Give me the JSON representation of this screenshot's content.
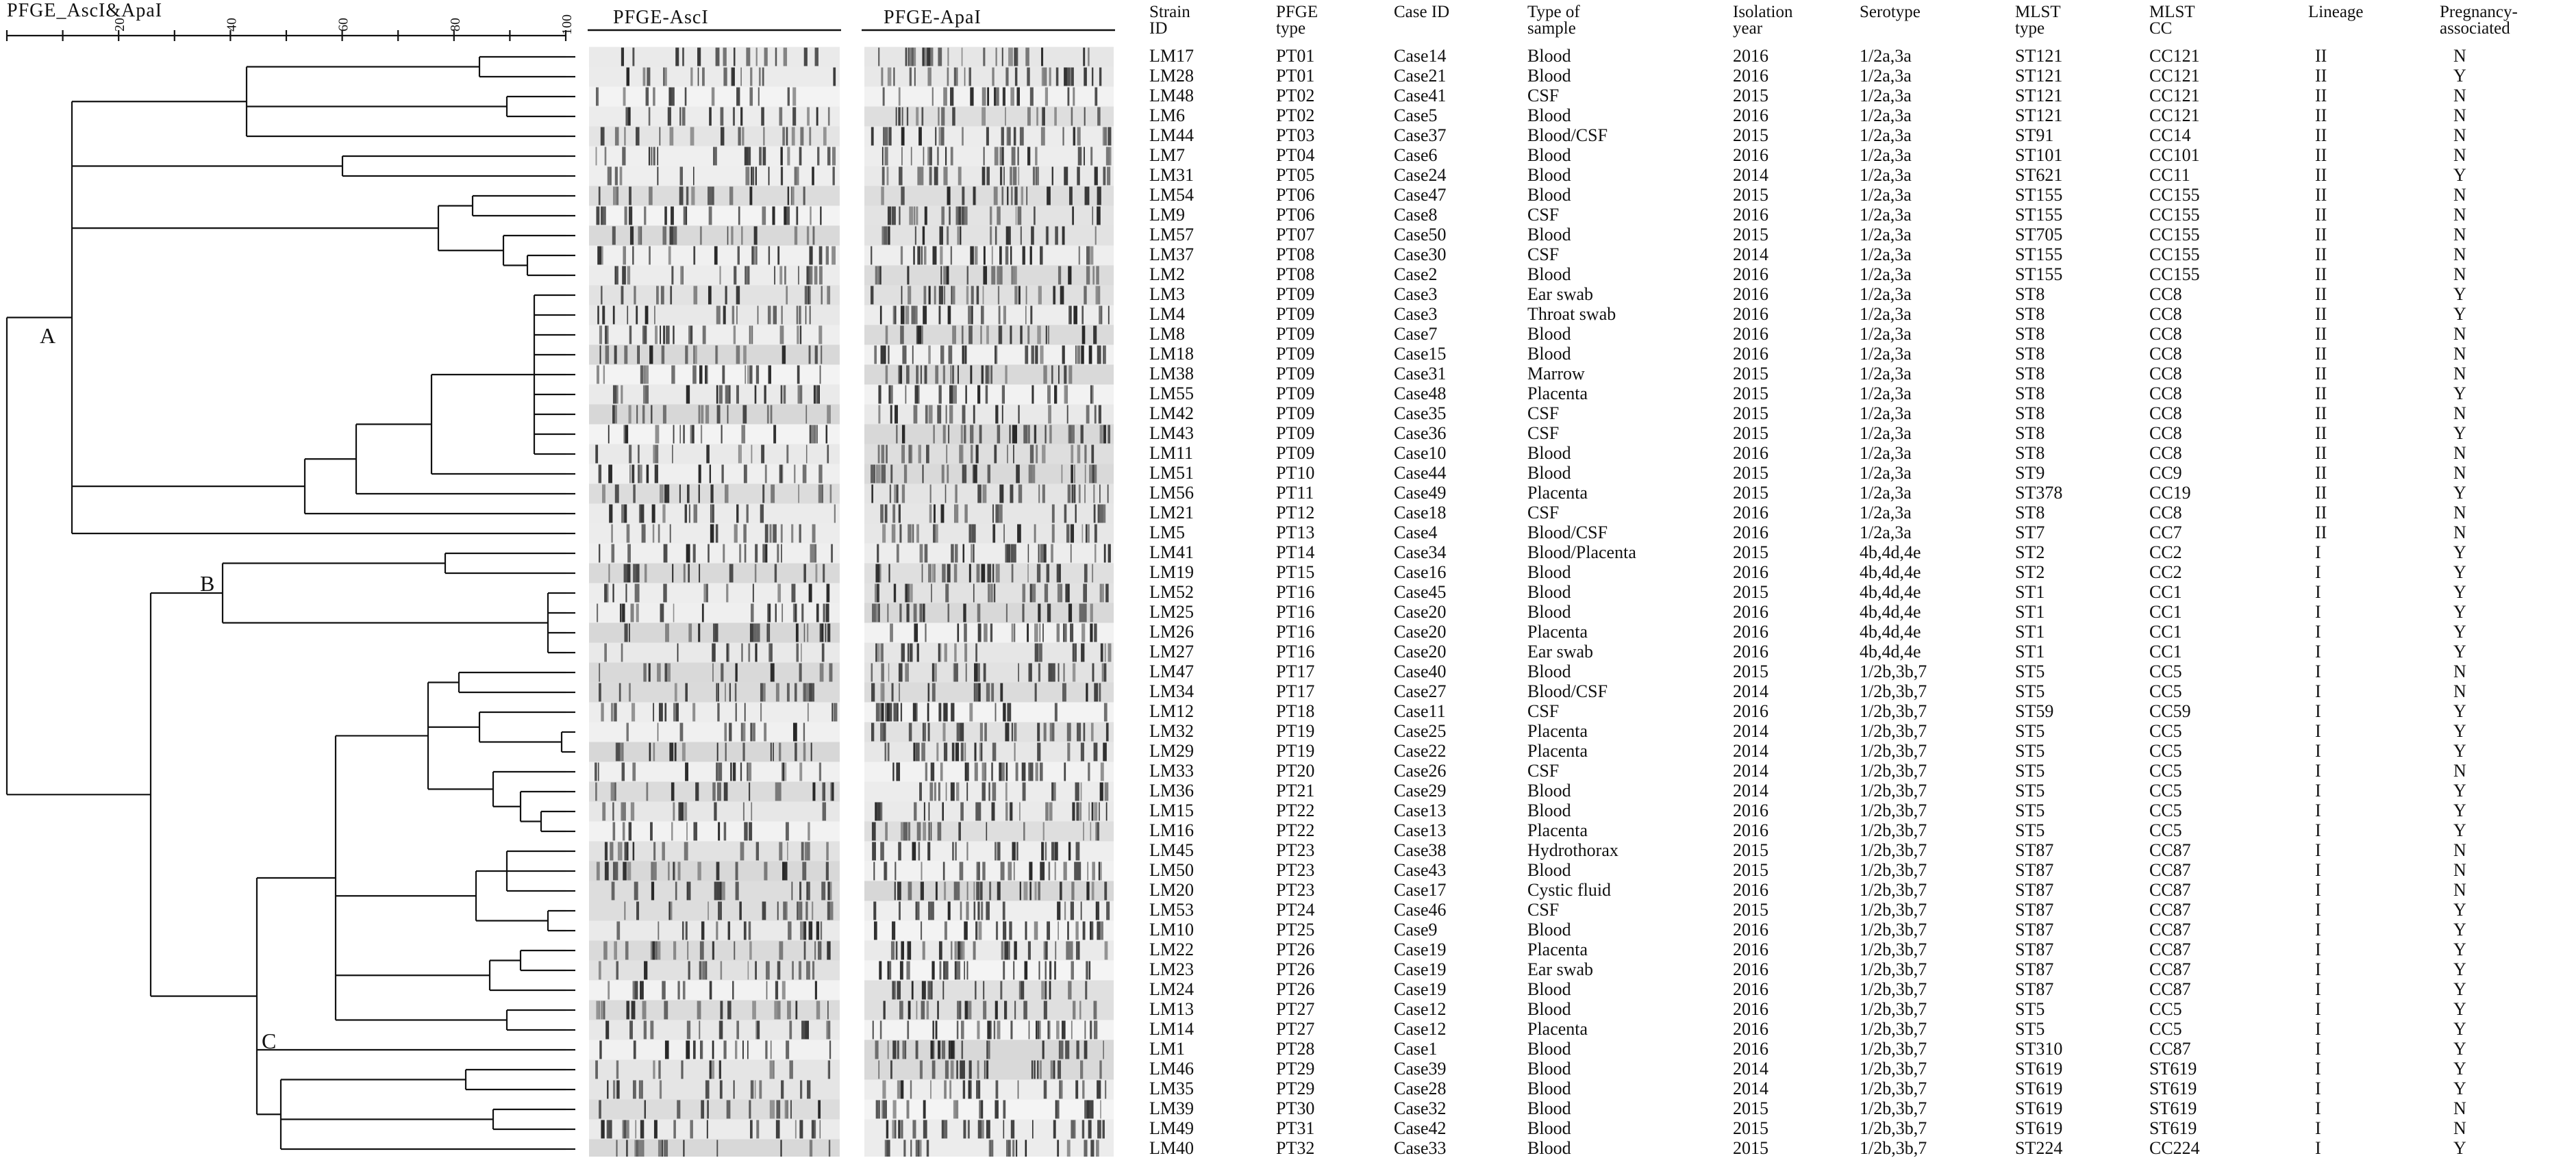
{
  "scale": {
    "title": "PFGE_AscI&ApaI",
    "ticks": [
      "20",
      "40",
      "60",
      "80",
      "100"
    ]
  },
  "gel_titles": {
    "ascI": "PFGE-AscI",
    "apaI": "PFGE-ApaI"
  },
  "clusters": [
    "A",
    "B",
    "C"
  ],
  "columns": [
    "Strain\nID",
    "PFGE\ntype",
    "Case ID",
    "Type of\nsample",
    "Isolation\nyear",
    "Serotype",
    "MLST\ntype",
    "MLST\nCC",
    "Lineage",
    "Pregnancy-\nassociated"
  ],
  "rows": [
    [
      "LM17",
      "PT01",
      "Case14",
      "Blood",
      "2016",
      "1/2a,3a",
      "ST121",
      "CC121",
      "II",
      "N"
    ],
    [
      "LM28",
      "PT01",
      "Case21",
      "Blood",
      "2016",
      "1/2a,3a",
      "ST121",
      "CC121",
      "II",
      "Y"
    ],
    [
      "LM48",
      "PT02",
      "Case41",
      "CSF",
      "2015",
      "1/2a,3a",
      "ST121",
      "CC121",
      "II",
      "N"
    ],
    [
      "LM6",
      "PT02",
      "Case5",
      "Blood",
      "2016",
      "1/2a,3a",
      "ST121",
      "CC121",
      "II",
      "N"
    ],
    [
      "LM44",
      "PT03",
      "Case37",
      "Blood/CSF",
      "2015",
      "1/2a,3a",
      "ST91",
      "CC14",
      "II",
      "N"
    ],
    [
      "LM7",
      "PT04",
      "Case6",
      "Blood",
      "2016",
      "1/2a,3a",
      "ST101",
      "CC101",
      "II",
      "N"
    ],
    [
      "LM31",
      "PT05",
      "Case24",
      "Blood",
      "2014",
      "1/2a,3a",
      "ST621",
      "CC11",
      "II",
      "Y"
    ],
    [
      "LM54",
      "PT06",
      "Case47",
      "Blood",
      "2015",
      "1/2a,3a",
      "ST155",
      "CC155",
      "II",
      "N"
    ],
    [
      "LM9",
      "PT06",
      "Case8",
      "CSF",
      "2016",
      "1/2a,3a",
      "ST155",
      "CC155",
      "II",
      "N"
    ],
    [
      "LM57",
      "PT07",
      "Case50",
      "Blood",
      "2015",
      "1/2a,3a",
      "ST705",
      "CC155",
      "II",
      "N"
    ],
    [
      "LM37",
      "PT08",
      "Case30",
      "CSF",
      "2014",
      "1/2a,3a",
      "ST155",
      "CC155",
      "II",
      "N"
    ],
    [
      "LM2",
      "PT08",
      "Case2",
      "Blood",
      "2016",
      "1/2a,3a",
      "ST155",
      "CC155",
      "II",
      "N"
    ],
    [
      "LM3",
      "PT09",
      "Case3",
      "Ear swab",
      "2016",
      "1/2a,3a",
      "ST8",
      "CC8",
      "II",
      "Y"
    ],
    [
      "LM4",
      "PT09",
      "Case3",
      "Throat swab",
      "2016",
      "1/2a,3a",
      "ST8",
      "CC8",
      "II",
      "Y"
    ],
    [
      "LM8",
      "PT09",
      "Case7",
      "Blood",
      "2016",
      "1/2a,3a",
      "ST8",
      "CC8",
      "II",
      "N"
    ],
    [
      "LM18",
      "PT09",
      "Case15",
      "Blood",
      "2016",
      "1/2a,3a",
      "ST8",
      "CC8",
      "II",
      "N"
    ],
    [
      "LM38",
      "PT09",
      "Case31",
      "Marrow",
      "2015",
      "1/2a,3a",
      "ST8",
      "CC8",
      "II",
      "N"
    ],
    [
      "LM55",
      "PT09",
      "Case48",
      "Placenta",
      "2015",
      "1/2a,3a",
      "ST8",
      "CC8",
      "II",
      "Y"
    ],
    [
      "LM42",
      "PT09",
      "Case35",
      "CSF",
      "2015",
      "1/2a,3a",
      "ST8",
      "CC8",
      "II",
      "N"
    ],
    [
      "LM43",
      "PT09",
      "Case36",
      "CSF",
      "2015",
      "1/2a,3a",
      "ST8",
      "CC8",
      "II",
      "Y"
    ],
    [
      "LM11",
      "PT09",
      "Case10",
      "Blood",
      "2016",
      "1/2a,3a",
      "ST8",
      "CC8",
      "II",
      "N"
    ],
    [
      "LM51",
      "PT10",
      "Case44",
      "Blood",
      "2015",
      "1/2a,3a",
      "ST9",
      "CC9",
      "II",
      "N"
    ],
    [
      "LM56",
      "PT11",
      "Case49",
      "Placenta",
      "2015",
      "1/2a,3a",
      "ST378",
      "CC19",
      "II",
      "Y"
    ],
    [
      "LM21",
      "PT12",
      "Case18",
      "CSF",
      "2016",
      "1/2a,3a",
      "ST8",
      "CC8",
      "II",
      "N"
    ],
    [
      "LM5",
      "PT13",
      "Case4",
      "Blood/CSF",
      "2016",
      "1/2a,3a",
      "ST7",
      "CC7",
      "II",
      "N"
    ],
    [
      "LM41",
      "PT14",
      "Case34",
      "Blood/Placenta",
      "2015",
      "4b,4d,4e",
      "ST2",
      "CC2",
      "I",
      "Y"
    ],
    [
      "LM19",
      "PT15",
      "Case16",
      "Blood",
      "2016",
      "4b,4d,4e",
      "ST2",
      "CC2",
      "I",
      "Y"
    ],
    [
      "LM52",
      "PT16",
      "Case45",
      "Blood",
      "2015",
      "4b,4d,4e",
      "ST1",
      "CC1",
      "I",
      "Y"
    ],
    [
      "LM25",
      "PT16",
      "Case20",
      "Blood",
      "2016",
      "4b,4d,4e",
      "ST1",
      "CC1",
      "I",
      "Y"
    ],
    [
      "LM26",
      "PT16",
      "Case20",
      "Placenta",
      "2016",
      "4b,4d,4e",
      "ST1",
      "CC1",
      "I",
      "Y"
    ],
    [
      "LM27",
      "PT16",
      "Case20",
      "Ear swab",
      "2016",
      "4b,4d,4e",
      "ST1",
      "CC1",
      "I",
      "Y"
    ],
    [
      "LM47",
      "PT17",
      "Case40",
      "Blood",
      "2015",
      "1/2b,3b,7",
      "ST5",
      "CC5",
      "I",
      "N"
    ],
    [
      "LM34",
      "PT17",
      "Case27",
      "Blood/CSF",
      "2014",
      "1/2b,3b,7",
      "ST5",
      "CC5",
      "I",
      "N"
    ],
    [
      "LM12",
      "PT18",
      "Case11",
      "CSF",
      "2016",
      "1/2b,3b,7",
      "ST59",
      "CC59",
      "I",
      "Y"
    ],
    [
      "LM32",
      "PT19",
      "Case25",
      "Placenta",
      "2014",
      "1/2b,3b,7",
      "ST5",
      "CC5",
      "I",
      "Y"
    ],
    [
      "LM29",
      "PT19",
      "Case22",
      "Placenta",
      "2014",
      "1/2b,3b,7",
      "ST5",
      "CC5",
      "I",
      "Y"
    ],
    [
      "LM33",
      "PT20",
      "Case26",
      "CSF",
      "2014",
      "1/2b,3b,7",
      "ST5",
      "CC5",
      "I",
      "N"
    ],
    [
      "LM36",
      "PT21",
      "Case29",
      "Blood",
      "2014",
      "1/2b,3b,7",
      "ST5",
      "CC5",
      "I",
      "Y"
    ],
    [
      "LM15",
      "PT22",
      "Case13",
      "Blood",
      "2016",
      "1/2b,3b,7",
      "ST5",
      "CC5",
      "I",
      "Y"
    ],
    [
      "LM16",
      "PT22",
      "Case13",
      "Placenta",
      "2016",
      "1/2b,3b,7",
      "ST5",
      "CC5",
      "I",
      "Y"
    ],
    [
      "LM45",
      "PT23",
      "Case38",
      "Hydrothorax",
      "2015",
      "1/2b,3b,7",
      "ST87",
      "CC87",
      "I",
      "N"
    ],
    [
      "LM50",
      "PT23",
      "Case43",
      "Blood",
      "2015",
      "1/2b,3b,7",
      "ST87",
      "CC87",
      "I",
      "N"
    ],
    [
      "LM20",
      "PT23",
      "Case17",
      "Cystic fluid",
      "2016",
      "1/2b,3b,7",
      "ST87",
      "CC87",
      "I",
      "N"
    ],
    [
      "LM53",
      "PT24",
      "Case46",
      "CSF",
      "2015",
      "1/2b,3b,7",
      "ST87",
      "CC87",
      "I",
      "Y"
    ],
    [
      "LM10",
      "PT25",
      "Case9",
      "Blood",
      "2016",
      "1/2b,3b,7",
      "ST87",
      "CC87",
      "I",
      "Y"
    ],
    [
      "LM22",
      "PT26",
      "Case19",
      "Placenta",
      "2016",
      "1/2b,3b,7",
      "ST87",
      "CC87",
      "I",
      "Y"
    ],
    [
      "LM23",
      "PT26",
      "Case19",
      "Ear swab",
      "2016",
      "1/2b,3b,7",
      "ST87",
      "CC87",
      "I",
      "Y"
    ],
    [
      "LM24",
      "PT26",
      "Case19",
      "Blood",
      "2016",
      "1/2b,3b,7",
      "ST87",
      "CC87",
      "I",
      "Y"
    ],
    [
      "LM13",
      "PT27",
      "Case12",
      "Blood",
      "2016",
      "1/2b,3b,7",
      "ST5",
      "CC5",
      "I",
      "Y"
    ],
    [
      "LM14",
      "PT27",
      "Case12",
      "Placenta",
      "2016",
      "1/2b,3b,7",
      "ST5",
      "CC5",
      "I",
      "Y"
    ],
    [
      "LM1",
      "PT28",
      "Case1",
      "Blood",
      "2016",
      "1/2b,3b,7",
      "ST310",
      "CC87",
      "I",
      "Y"
    ],
    [
      "LM46",
      "PT29",
      "Case39",
      "Blood",
      "2014",
      "1/2b,3b,7",
      "ST619",
      "ST619",
      "I",
      "Y"
    ],
    [
      "LM35",
      "PT29",
      "Case28",
      "Blood",
      "2014",
      "1/2b,3b,7",
      "ST619",
      "ST619",
      "I",
      "Y"
    ],
    [
      "LM39",
      "PT30",
      "Case32",
      "Blood",
      "2015",
      "1/2b,3b,7",
      "ST619",
      "ST619",
      "I",
      "N"
    ],
    [
      "LM49",
      "PT31",
      "Case42",
      "Blood",
      "2015",
      "1/2b,3b,7",
      "ST619",
      "ST619",
      "I",
      "N"
    ],
    [
      "LM40",
      "PT32",
      "Case33",
      "Blood",
      "2015",
      "1/2b,3b,7",
      "ST224",
      "CC224",
      "I",
      "Y"
    ]
  ]
}
